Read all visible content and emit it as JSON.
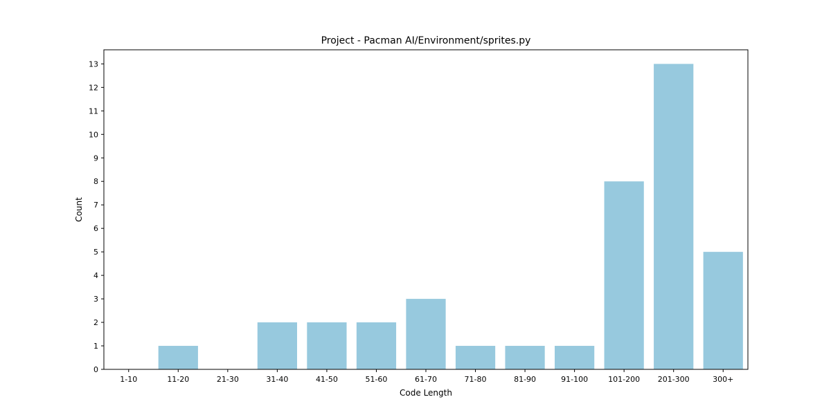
{
  "chart_data": {
    "type": "bar",
    "title": "Project - Pacman AI/Environment/sprites.py",
    "xlabel": "Code Length",
    "ylabel": "Count",
    "categories": [
      "1-10",
      "11-20",
      "21-30",
      "31-40",
      "41-50",
      "51-60",
      "61-70",
      "71-80",
      "81-90",
      "91-100",
      "101-200",
      "201-300",
      "300+"
    ],
    "values": [
      0,
      1,
      0,
      2,
      2,
      2,
      3,
      1,
      1,
      1,
      8,
      13,
      5
    ],
    "ylim": [
      0,
      13.6
    ],
    "yticks": [
      0,
      1,
      2,
      3,
      4,
      5,
      6,
      7,
      8,
      9,
      10,
      11,
      12,
      13
    ],
    "grid": false,
    "legend": "none",
    "bar_color": "#97c9de"
  }
}
